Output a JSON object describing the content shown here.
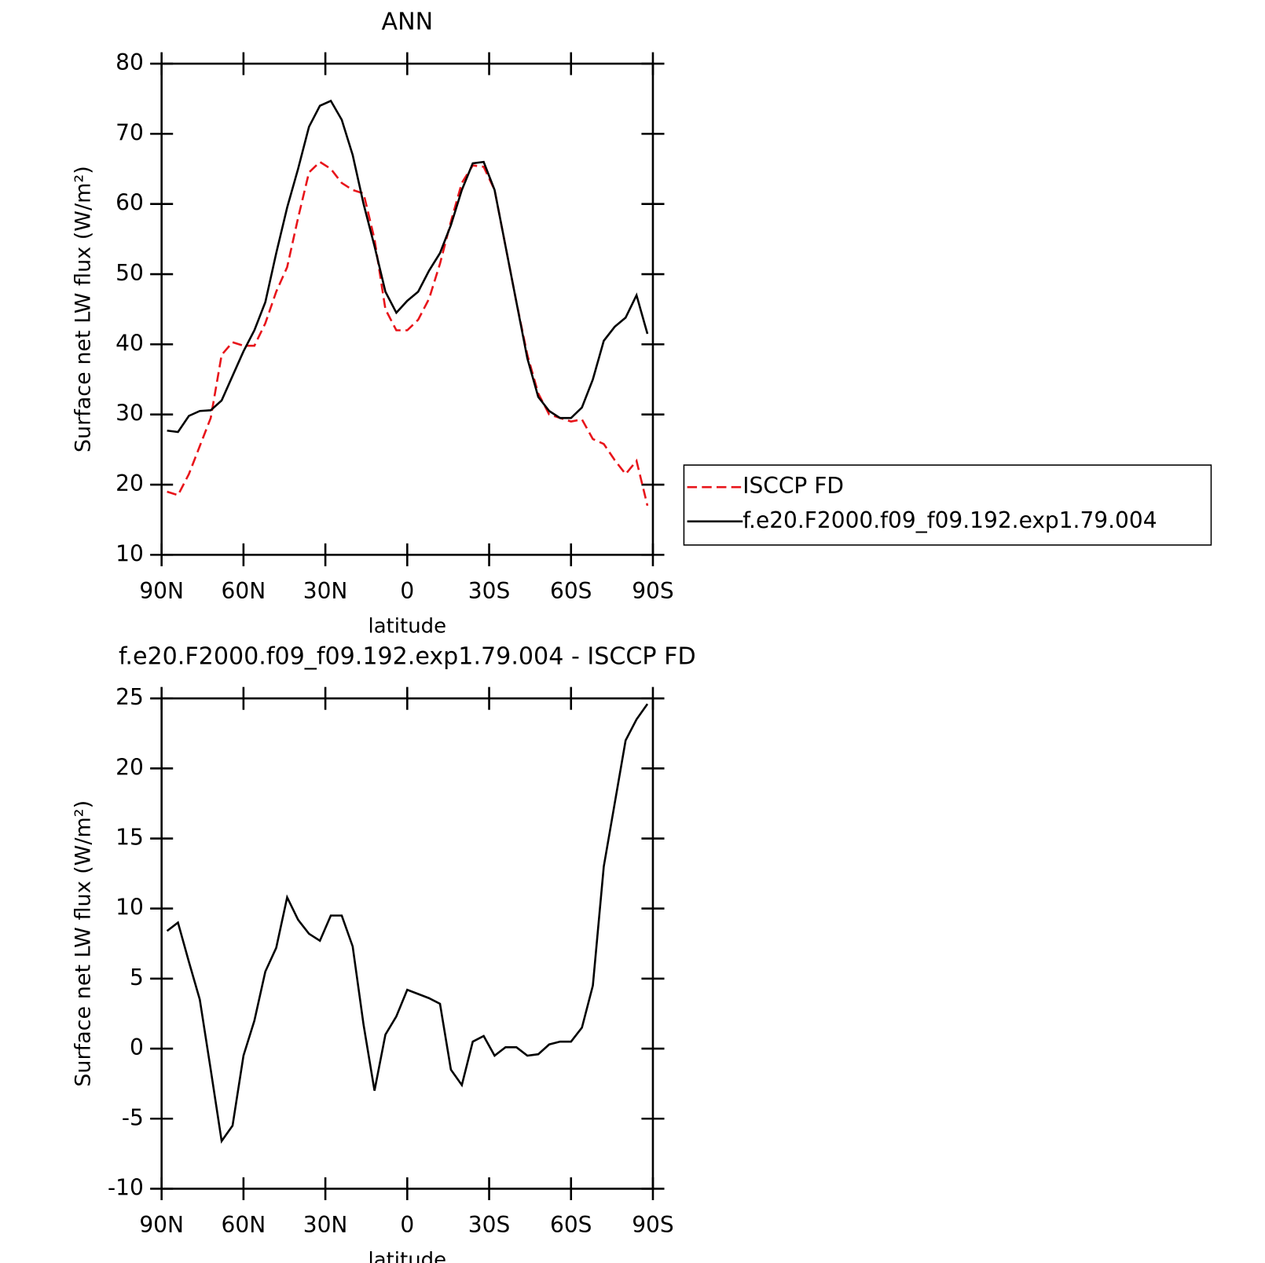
{
  "chart_data": [
    {
      "type": "line",
      "title": "ANN",
      "xlabel": "latitude",
      "ylabel": "Surface net LW flux (W/m²)",
      "x": [
        88,
        84,
        80,
        76,
        72,
        68,
        64,
        60,
        56,
        52,
        48,
        44,
        40,
        36,
        32,
        28,
        24,
        20,
        16,
        12,
        8,
        4,
        0,
        -4,
        -8,
        -12,
        -16,
        -20,
        -24,
        -28,
        -32,
        -36,
        -40,
        -44,
        -48,
        -52,
        -56,
        -60,
        -64,
        -68,
        -72,
        -76,
        -80,
        -84,
        -88
      ],
      "xlim": [
        90,
        -90
      ],
      "xticks": [
        {
          "value": 90,
          "label": "90N"
        },
        {
          "value": 60,
          "label": "60N"
        },
        {
          "value": 30,
          "label": "30N"
        },
        0,
        {
          "value": -30,
          "label": "30S"
        },
        {
          "value": -60,
          "label": "60S"
        },
        {
          "value": -90,
          "label": "90S"
        }
      ],
      "ylim": [
        10,
        80
      ],
      "yticks": [
        10,
        20,
        30,
        40,
        50,
        60,
        70,
        80
      ],
      "legend": "right",
      "series": [
        {
          "name": "ISCCP FD",
          "color": "#e8141a",
          "linestyle": "dashed",
          "values": [
            19,
            18.5,
            21.5,
            25.5,
            29.5,
            38.5,
            40.3,
            39.8,
            39.8,
            43,
            47.5,
            51,
            58,
            64.5,
            66,
            65,
            63,
            62,
            61.5,
            55,
            45,
            42,
            42,
            43.5,
            46.5,
            51.5,
            57.5,
            63,
            65.5,
            65.3,
            62,
            54,
            46,
            38.5,
            33,
            30,
            29.5,
            29,
            29.3,
            26.5,
            25.8,
            23.5,
            21.5,
            23.4,
            17
          ]
        },
        {
          "name": "f.e20.F2000.f09_f09.192.exp1.79.004",
          "color": "#000000",
          "linestyle": "solid",
          "values": [
            27.7,
            27.5,
            29.8,
            30.5,
            30.6,
            32,
            35.5,
            39,
            42,
            46,
            53,
            59.5,
            65,
            71,
            74,
            74.7,
            72,
            67,
            60,
            54,
            47.5,
            44.5,
            46.2,
            47.5,
            50.5,
            53,
            57,
            62,
            65.8,
            66,
            62,
            54,
            46,
            38,
            32.5,
            30.5,
            29.5,
            29.5,
            31,
            35,
            40.5,
            42.5,
            43.8,
            47,
            41.5
          ]
        }
      ]
    },
    {
      "type": "line",
      "title": "f.e20.F2000.f09_f09.192.exp1.79.004 - ISCCP FD",
      "xlabel": "latitude",
      "ylabel": "Surface net LW flux (W/m²)",
      "x": [
        88,
        84,
        80,
        76,
        72,
        68,
        64,
        60,
        56,
        52,
        48,
        44,
        40,
        36,
        32,
        28,
        24,
        20,
        16,
        12,
        8,
        4,
        0,
        -4,
        -8,
        -12,
        -16,
        -20,
        -24,
        -28,
        -32,
        -36,
        -40,
        -44,
        -48,
        -52,
        -56,
        -60,
        -64,
        -68,
        -72,
        -76,
        -80,
        -84,
        -88
      ],
      "xlim": [
        90,
        -90
      ],
      "xticks": [
        {
          "value": 90,
          "label": "90N"
        },
        {
          "value": 60,
          "label": "60N"
        },
        {
          "value": 30,
          "label": "30N"
        },
        0,
        {
          "value": -30,
          "label": "30S"
        },
        {
          "value": -60,
          "label": "60S"
        },
        {
          "value": -90,
          "label": "90S"
        }
      ],
      "ylim": [
        -10,
        25
      ],
      "yticks": [
        -10,
        -5,
        0,
        5,
        10,
        15,
        20,
        25
      ],
      "color": "#000000",
      "linestyle": "solid",
      "values": [
        8.4,
        9,
        6.2,
        3.5,
        -1.5,
        -6.6,
        -5.5,
        -0.5,
        2,
        5.5,
        7.2,
        10.8,
        9.2,
        8.2,
        7.7,
        9.5,
        9.5,
        7.3,
        1.7,
        -3,
        1,
        2.3,
        4.2,
        3.9,
        3.6,
        3.2,
        -1.5,
        -2.6,
        0.5,
        0.9,
        -0.5,
        0.1,
        0.1,
        -0.5,
        -0.4,
        0.3,
        0.5,
        0.5,
        1.5,
        4.5,
        13,
        17.5,
        22,
        23.5,
        24.6
      ]
    }
  ]
}
